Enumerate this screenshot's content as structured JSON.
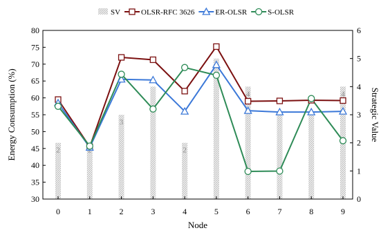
{
  "chart_data": {
    "type": "bar",
    "xlabel": "Node",
    "ylabel": "Energy Consumption (%)",
    "y2label": "Strategic Value",
    "ylim": [
      30,
      80
    ],
    "y2lim": [
      0,
      6
    ],
    "categories": [
      0,
      1,
      2,
      3,
      4,
      5,
      6,
      7,
      8,
      9
    ],
    "y_ticks": [
      30,
      35,
      40,
      45,
      50,
      55,
      60,
      65,
      70,
      75,
      80
    ],
    "y2_ticks": [
      0,
      1,
      2,
      3,
      4,
      5,
      6
    ],
    "bars": {
      "name": "SV",
      "axis": "right",
      "values": [
        2,
        2,
        3,
        4,
        2,
        5,
        4,
        3,
        3,
        4
      ],
      "labels": [
        "2",
        "2",
        "3",
        "",
        "2",
        "",
        "4",
        "",
        "",
        "4"
      ]
    },
    "series": [
      {
        "name": "OLSR-RFC 3626",
        "axis": "left",
        "color": "#7b1010",
        "marker": "square",
        "values": [
          59.5,
          45.5,
          72,
          71.3,
          62,
          75.2,
          59,
          59.1,
          59.3,
          59.2
        ]
      },
      {
        "name": "ER-OLSR",
        "axis": "left",
        "color": "#3b78d8",
        "marker": "triangle",
        "values": [
          58.5,
          45.3,
          65.5,
          65.3,
          56,
          69.8,
          56.2,
          55.8,
          55.8,
          56
        ]
      },
      {
        "name": "S-OLSR",
        "axis": "left",
        "color": "#2e8b57",
        "marker": "circle",
        "values": [
          57.5,
          45.7,
          67,
          56.7,
          69,
          66.7,
          38.2,
          38.3,
          59.8,
          47.3
        ]
      }
    ],
    "legend": {
      "position": "top",
      "items": [
        "SV",
        "OLSR-RFC 3626",
        "ER-OLSR",
        "S-OLSR"
      ]
    },
    "grid": false
  }
}
